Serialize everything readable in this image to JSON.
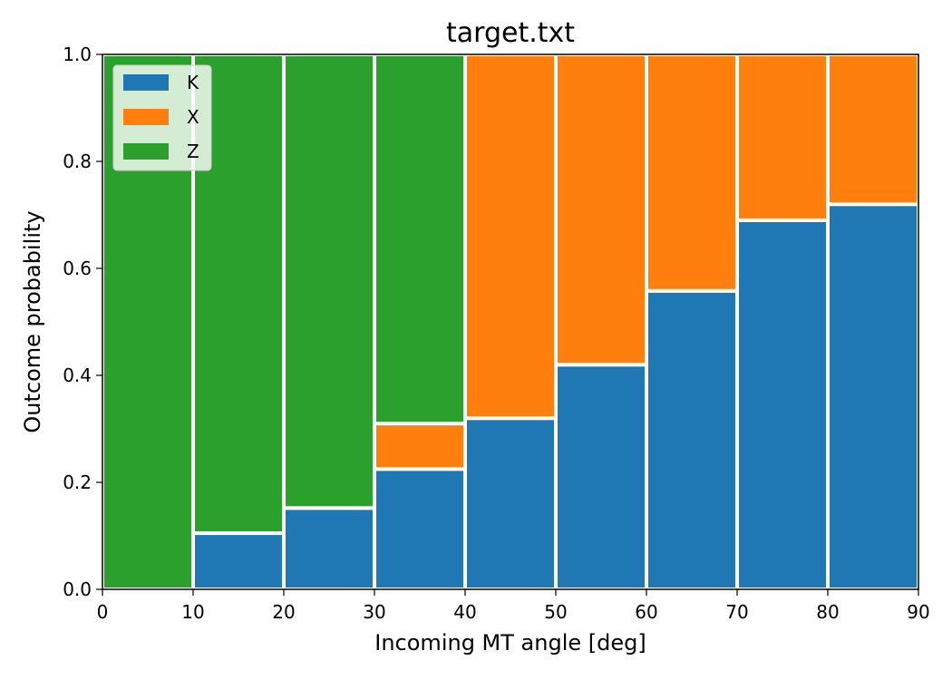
{
  "chart_data": {
    "type": "bar",
    "stacked": true,
    "title": "target.txt",
    "xlabel": "Incoming MT angle [deg]",
    "ylabel": "Outcome probability",
    "xlim": [
      0,
      90
    ],
    "ylim": [
      0,
      1.0
    ],
    "bin_edges": [
      0,
      10,
      20,
      30,
      40,
      50,
      60,
      70,
      80,
      90
    ],
    "xticks": [
      "0",
      "10",
      "20",
      "30",
      "40",
      "50",
      "60",
      "70",
      "80",
      "90"
    ],
    "yticks": [
      "0.0",
      "0.2",
      "0.4",
      "0.6",
      "0.8",
      "1.0"
    ],
    "grid": false,
    "legend_position": "top-left",
    "series": [
      {
        "name": "K",
        "color": "#1f77b4",
        "values": [
          0.0,
          0.105,
          0.152,
          0.225,
          0.32,
          0.42,
          0.558,
          0.69,
          0.72
        ]
      },
      {
        "name": "X",
        "color": "#ff7f0e",
        "values": [
          0.0,
          0.0,
          0.0,
          0.085,
          0.68,
          0.58,
          0.442,
          0.31,
          0.28
        ]
      },
      {
        "name": "Z",
        "color": "#2ca02c",
        "values": [
          1.0,
          0.895,
          0.848,
          0.69,
          0.0,
          0.0,
          0.0,
          0.0,
          0.0
        ]
      }
    ]
  }
}
